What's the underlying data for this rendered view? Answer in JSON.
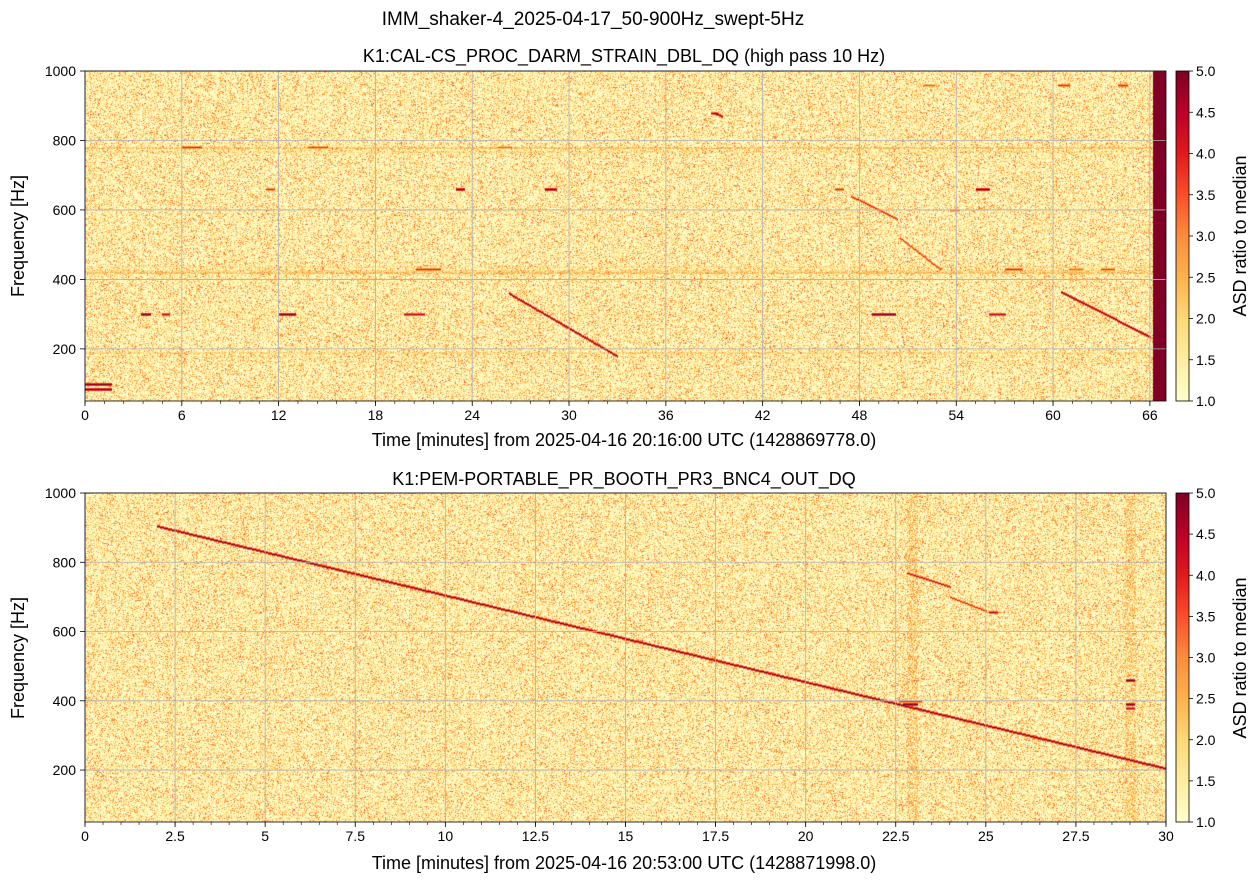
{
  "figure": {
    "suptitle": "IMM_shaker-4_2025-04-17_50-900Hz_swept-5Hz"
  },
  "colors": {
    "background_low": "#fff7c4",
    "accent_orange": "#fd8d3c",
    "accent_red": "#e31a1c",
    "accent_darkred": "#800026",
    "grid": "#b0b0b0"
  },
  "chart_data": [
    {
      "type": "heatmap",
      "title": "K1:CAL-CS_PROC_DARM_STRAIN_DBL_DQ (high pass 10 Hz)",
      "xlabel": "Time [minutes] from 2025-04-16 20:16:00 UTC (1428869778.0)",
      "ylabel": "Frequency [Hz]",
      "xlim": [
        0,
        67
      ],
      "ylim": [
        50,
        1000
      ],
      "xticks": [
        0,
        6,
        12,
        18,
        24,
        30,
        36,
        42,
        48,
        54,
        60,
        66
      ],
      "xtick_labels": [
        "0",
        "6",
        "12",
        "18",
        "24",
        "30",
        "36",
        "42",
        "48",
        "54",
        "60",
        "66"
      ],
      "yticks": [
        200,
        400,
        600,
        800,
        1000
      ],
      "ytick_labels": [
        "200",
        "400",
        "600",
        "800",
        "1000"
      ],
      "colorbar": {
        "label": "ASD ratio to median",
        "range": [
          1.0,
          5.0
        ],
        "ticks": [
          1.0,
          1.5,
          2.0,
          2.5,
          3.0,
          3.5,
          4.0,
          4.5,
          5.0
        ],
        "tick_labels": [
          "1.0",
          "1.5",
          "2.0",
          "2.5",
          "3.0",
          "3.5",
          "4.0",
          "4.5",
          "5.0"
        ],
        "colormap": "YlOrRd"
      },
      "grid": true,
      "saturated_band": {
        "x": [
          66.2,
          67
        ],
        "value": 5.0
      },
      "horizontal_lines": [
        {
          "f": 780,
          "level": 2.6
        },
        {
          "f": 770,
          "level": 2.0
        },
        {
          "f": 420,
          "level": 2.6
        },
        {
          "f": 428,
          "level": 2.2
        },
        {
          "f": 440,
          "level": 1.9
        },
        {
          "f": 190,
          "level": 2.2
        },
        {
          "f": 180,
          "level": 1.8
        },
        {
          "f": 165,
          "level": 1.7
        },
        {
          "f": 300,
          "level": 1.7
        }
      ],
      "features": [
        {
          "x0": 0.0,
          "x1": 1.6,
          "f": 100,
          "level": 5.0
        },
        {
          "x0": 0.0,
          "x1": 1.6,
          "f": 85,
          "level": 5.0
        },
        {
          "x0": 3.5,
          "x1": 4.0,
          "f": 300,
          "level": 5.0
        },
        {
          "x0": 4.8,
          "x1": 5.2,
          "f": 300,
          "level": 4.5
        },
        {
          "x0": 12.0,
          "x1": 13.0,
          "f": 300,
          "level": 5.0
        },
        {
          "x0": 19.8,
          "x1": 21.0,
          "f": 300,
          "level": 4.5
        },
        {
          "x0": 23.0,
          "x1": 23.5,
          "f": 660,
          "level": 5.0
        },
        {
          "x0": 28.5,
          "x1": 29.2,
          "f": 660,
          "level": 5.0
        },
        {
          "x0": 11.2,
          "x1": 11.7,
          "f": 660,
          "level": 4.0
        },
        {
          "x0": 20.5,
          "x1": 22.0,
          "f": 430,
          "level": 4.0
        },
        {
          "x0": 38.8,
          "x1": 39.2,
          "f": 880,
          "level": 4.5
        },
        {
          "x0": 48.8,
          "x1": 50.2,
          "f": 300,
          "level": 5.0
        },
        {
          "x0": 55.2,
          "x1": 56.0,
          "f": 660,
          "level": 5.0
        },
        {
          "x0": 57.0,
          "x1": 58.0,
          "f": 430,
          "level": 4.0
        },
        {
          "x0": 56.0,
          "x1": 57.0,
          "f": 300,
          "level": 4.5
        },
        {
          "x0": 46.5,
          "x1": 47.0,
          "f": 660,
          "level": 4.0
        },
        {
          "x0": 53.6,
          "x1": 54.2,
          "f": 600,
          "level": 3.5
        },
        {
          "x0": 6.0,
          "x1": 7.2,
          "f": 780,
          "level": 4.0
        },
        {
          "x0": 13.8,
          "x1": 15.0,
          "f": 780,
          "level": 3.8
        },
        {
          "x0": 25.6,
          "x1": 26.4,
          "f": 780,
          "level": 3.5
        },
        {
          "x0": 60.3,
          "x1": 61.0,
          "f": 960,
          "level": 4.0
        },
        {
          "x0": 64.0,
          "x1": 64.6,
          "f": 960,
          "level": 4.0
        },
        {
          "x0": 52.0,
          "x1": 52.6,
          "f": 960,
          "level": 3.5
        },
        {
          "x0": 61.0,
          "x1": 61.8,
          "f": 430,
          "level": 3.5
        },
        {
          "x0": 63.0,
          "x1": 63.8,
          "f": 430,
          "level": 3.8
        }
      ],
      "sweeps": [
        {
          "x0": 26.3,
          "f0": 360,
          "x1": 33.0,
          "f1": 180,
          "level": 5.0
        },
        {
          "x0": 60.5,
          "f0": 365,
          "x1": 66.0,
          "f1": 235,
          "level": 5.0
        },
        {
          "x0": 39.0,
          "f0": 880,
          "x1": 39.5,
          "f1": 870,
          "level": 5.0
        },
        {
          "x0": 47.5,
          "f0": 640,
          "x1": 50.3,
          "f1": 575,
          "level": 4.2
        },
        {
          "x0": 50.5,
          "f0": 520,
          "x1": 53.0,
          "f1": 430,
          "level": 4.0
        }
      ]
    },
    {
      "type": "heatmap",
      "title": "K1:PEM-PORTABLE_PR_BOOTH_PR3_BNC4_OUT_DQ",
      "xlabel": "Time [minutes] from 2025-04-16 20:53:00 UTC (1428871998.0)",
      "ylabel": "Frequency [Hz]",
      "xlim": [
        0,
        30
      ],
      "ylim": [
        50,
        1000
      ],
      "xticks": [
        0,
        2.5,
        5,
        7.5,
        10,
        12.5,
        15,
        17.5,
        20,
        22.5,
        25,
        27.5,
        30
      ],
      "xtick_labels": [
        "0",
        "2.5",
        "5",
        "7.5",
        "10",
        "12.5",
        "15",
        "17.5",
        "20",
        "22.5",
        "25",
        "27.5",
        "30"
      ],
      "yticks": [
        200,
        400,
        600,
        800,
        1000
      ],
      "ytick_labels": [
        "200",
        "400",
        "600",
        "800",
        "1000"
      ],
      "colorbar": {
        "label": "ASD ratio to median",
        "range": [
          1.0,
          5.0
        ],
        "ticks": [
          1.0,
          1.5,
          2.0,
          2.5,
          3.0,
          3.5,
          4.0,
          4.5,
          5.0
        ],
        "tick_labels": [
          "1.0",
          "1.5",
          "2.0",
          "2.5",
          "3.0",
          "3.5",
          "4.0",
          "4.5",
          "5.0"
        ],
        "colormap": "YlOrRd"
      },
      "grid": true,
      "horizontal_lines": [],
      "features": [
        {
          "x0": 22.7,
          "x1": 23.1,
          "f": 390,
          "level": 5.0
        },
        {
          "x0": 22.6,
          "x1": 23.2,
          "f": 400,
          "level": 4.0
        },
        {
          "x0": 28.9,
          "x1": 29.1,
          "f": 460,
          "level": 5.0
        },
        {
          "x0": 28.9,
          "x1": 29.1,
          "f": 390,
          "level": 5.0
        },
        {
          "x0": 28.9,
          "x1": 29.1,
          "f": 380,
          "level": 4.5
        },
        {
          "x0": 25.1,
          "x1": 25.3,
          "f": 655,
          "level": 4.5
        }
      ],
      "vertical_bands": [
        {
          "x": 22.95,
          "level": 2.0
        },
        {
          "x": 29.0,
          "level": 1.9
        }
      ],
      "sweeps": [
        {
          "x0": 2.0,
          "f0": 905,
          "x1": 30.0,
          "f1": 205,
          "level": 5.0
        },
        {
          "x0": 22.8,
          "f0": 770,
          "x1": 24.0,
          "f1": 730,
          "level": 4.5
        },
        {
          "x0": 24.0,
          "f0": 700,
          "x1": 25.0,
          "f1": 660,
          "level": 4.0
        }
      ]
    }
  ]
}
